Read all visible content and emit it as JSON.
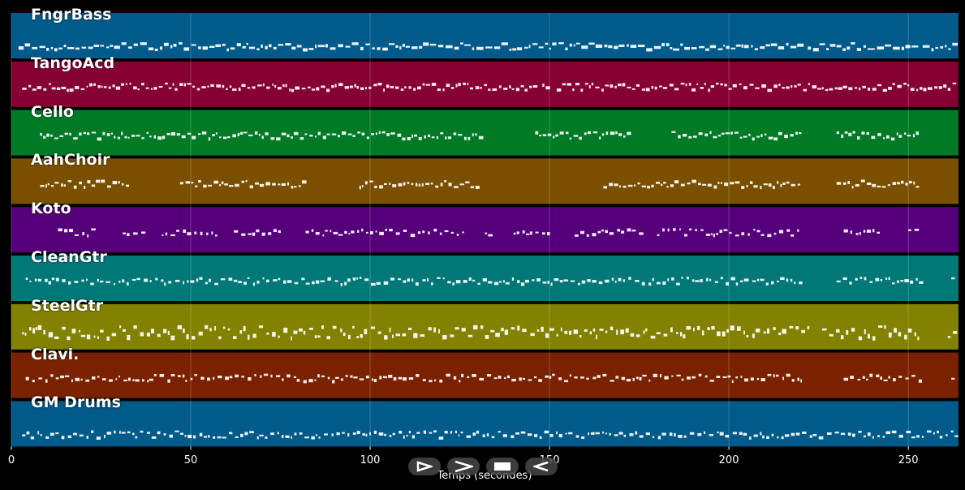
{
  "tracks": [
    {
      "name": "FngrBass",
      "color": "#005a8a"
    },
    {
      "name": "TangoAcd",
      "color": "#870032"
    },
    {
      "name": "Cello",
      "color": "#007a24"
    },
    {
      "name": "AahChoir",
      "color": "#7a5000"
    },
    {
      "name": "Koto",
      "color": "#55007a"
    },
    {
      "name": "CleanGtr",
      "color": "#007878"
    },
    {
      "name": "SteelGtr",
      "color": "#828200"
    },
    {
      "name": "Clavi.",
      "color": "#7a2200"
    },
    {
      "name": "GM Drums",
      "color": "#005a8a"
    }
  ],
  "x_axis": {
    "label": "Temps (secondes)",
    "range": [
      0,
      264
    ],
    "ticks": [
      {
        "value": 0,
        "label": "0"
      },
      {
        "value": 50,
        "label": "50"
      },
      {
        "value": 100,
        "label": "100"
      },
      {
        "value": 150,
        "label": "150"
      },
      {
        "value": 200,
        "label": "200"
      },
      {
        "value": 250,
        "label": "250"
      }
    ]
  },
  "transport": [
    {
      "name": "play-icon",
      "glyph": "play"
    },
    {
      "name": "forward-icon",
      "glyph": "forward"
    },
    {
      "name": "stop-icon",
      "glyph": "stop"
    },
    {
      "name": "rewind-icon",
      "glyph": "rewind"
    }
  ]
}
